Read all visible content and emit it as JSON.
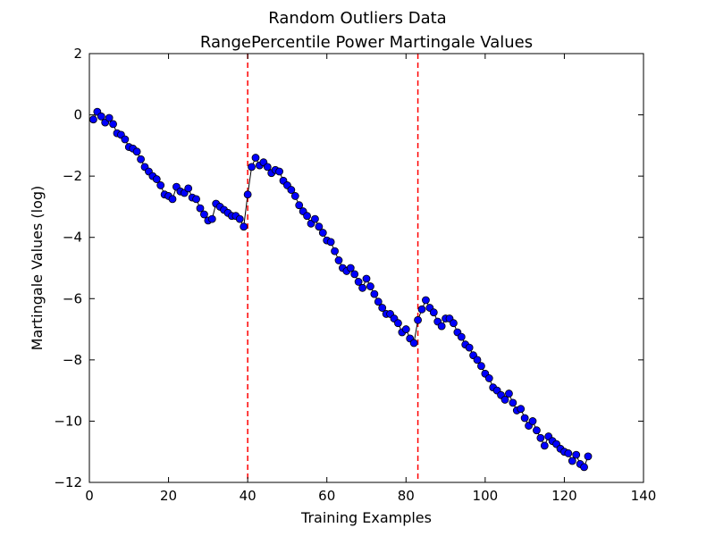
{
  "chart_data": {
    "type": "scatter",
    "title_line1": "Random Outliers Data",
    "title_line2": "RangePercentile Power Martingale Values",
    "xlabel": "Training Examples",
    "ylabel": "Martingale Values (log)",
    "xlim": [
      0,
      140
    ],
    "ylim": [
      -12,
      2
    ],
    "xticks": [
      0,
      20,
      40,
      60,
      80,
      100,
      120,
      140
    ],
    "yticks": [
      2,
      0,
      -2,
      -4,
      -6,
      -8,
      -10,
      -12
    ],
    "ytick_labels": [
      "2",
      "0",
      "−2",
      "−4",
      "−6",
      "−8",
      "−10",
      "−12"
    ],
    "grid": false,
    "line_connects_points": true,
    "colors": {
      "points": "#0000ff",
      "line": "#000000",
      "change_lines": "#ff0000"
    },
    "change_points_x": [
      40,
      83
    ],
    "x": [
      1,
      2,
      3,
      4,
      5,
      6,
      7,
      8,
      9,
      10,
      11,
      12,
      13,
      14,
      15,
      16,
      17,
      18,
      19,
      20,
      21,
      22,
      23,
      24,
      25,
      26,
      27,
      28,
      29,
      30,
      31,
      32,
      33,
      34,
      35,
      36,
      37,
      38,
      39,
      40,
      41,
      42,
      43,
      44,
      45,
      46,
      47,
      48,
      49,
      50,
      51,
      52,
      53,
      54,
      55,
      56,
      57,
      58,
      59,
      60,
      61,
      62,
      63,
      64,
      65,
      66,
      67,
      68,
      69,
      70,
      71,
      72,
      73,
      74,
      75,
      76,
      77,
      78,
      79,
      80,
      81,
      82,
      83,
      84,
      85,
      86,
      87,
      88,
      89,
      90,
      91,
      92,
      93,
      94,
      95,
      96,
      97,
      98,
      99,
      100,
      101,
      102,
      103,
      104,
      105,
      106,
      107,
      108,
      109,
      110,
      111,
      112,
      113,
      114,
      115,
      116,
      117,
      118,
      119,
      120,
      121,
      122,
      123,
      124,
      125,
      126
    ],
    "y": [
      -0.15,
      0.1,
      -0.05,
      -0.25,
      -0.1,
      -0.3,
      -0.6,
      -0.65,
      -0.8,
      -1.05,
      -1.1,
      -1.2,
      -1.45,
      -1.7,
      -1.85,
      -2.0,
      -2.1,
      -2.3,
      -2.6,
      -2.65,
      -2.75,
      -2.35,
      -2.5,
      -2.55,
      -2.4,
      -2.7,
      -2.75,
      -3.05,
      -3.25,
      -3.45,
      -3.4,
      -2.9,
      -3.0,
      -3.1,
      -3.2,
      -3.3,
      -3.3,
      -3.4,
      -3.65,
      -2.6,
      -1.7,
      -1.4,
      -1.65,
      -1.55,
      -1.7,
      -1.9,
      -1.8,
      -1.85,
      -2.15,
      -2.3,
      -2.45,
      -2.65,
      -2.95,
      -3.15,
      -3.3,
      -3.55,
      -3.4,
      -3.65,
      -3.85,
      -4.1,
      -4.15,
      -4.45,
      -4.75,
      -5.0,
      -5.1,
      -5.0,
      -5.2,
      -5.45,
      -5.65,
      -5.35,
      -5.6,
      -5.85,
      -6.1,
      -6.3,
      -6.5,
      -6.5,
      -6.65,
      -6.8,
      -7.1,
      -7.0,
      -7.3,
      -7.45,
      -6.7,
      -6.35,
      -6.05,
      -6.3,
      -6.45,
      -6.75,
      -6.9,
      -6.65,
      -6.65,
      -6.8,
      -7.1,
      -7.25,
      -7.5,
      -7.6,
      -7.85,
      -8.0,
      -8.2,
      -8.45,
      -8.6,
      -8.9,
      -9.0,
      -9.15,
      -9.3,
      -9.1,
      -9.4,
      -9.65,
      -9.6,
      -9.9,
      -10.15,
      -10.0,
      -10.3,
      -10.55,
      -10.8,
      -10.5,
      -10.65,
      -10.75,
      -10.9,
      -11.0,
      -11.05,
      -11.3,
      -11.1,
      -11.4,
      -11.5,
      -11.15
    ]
  }
}
